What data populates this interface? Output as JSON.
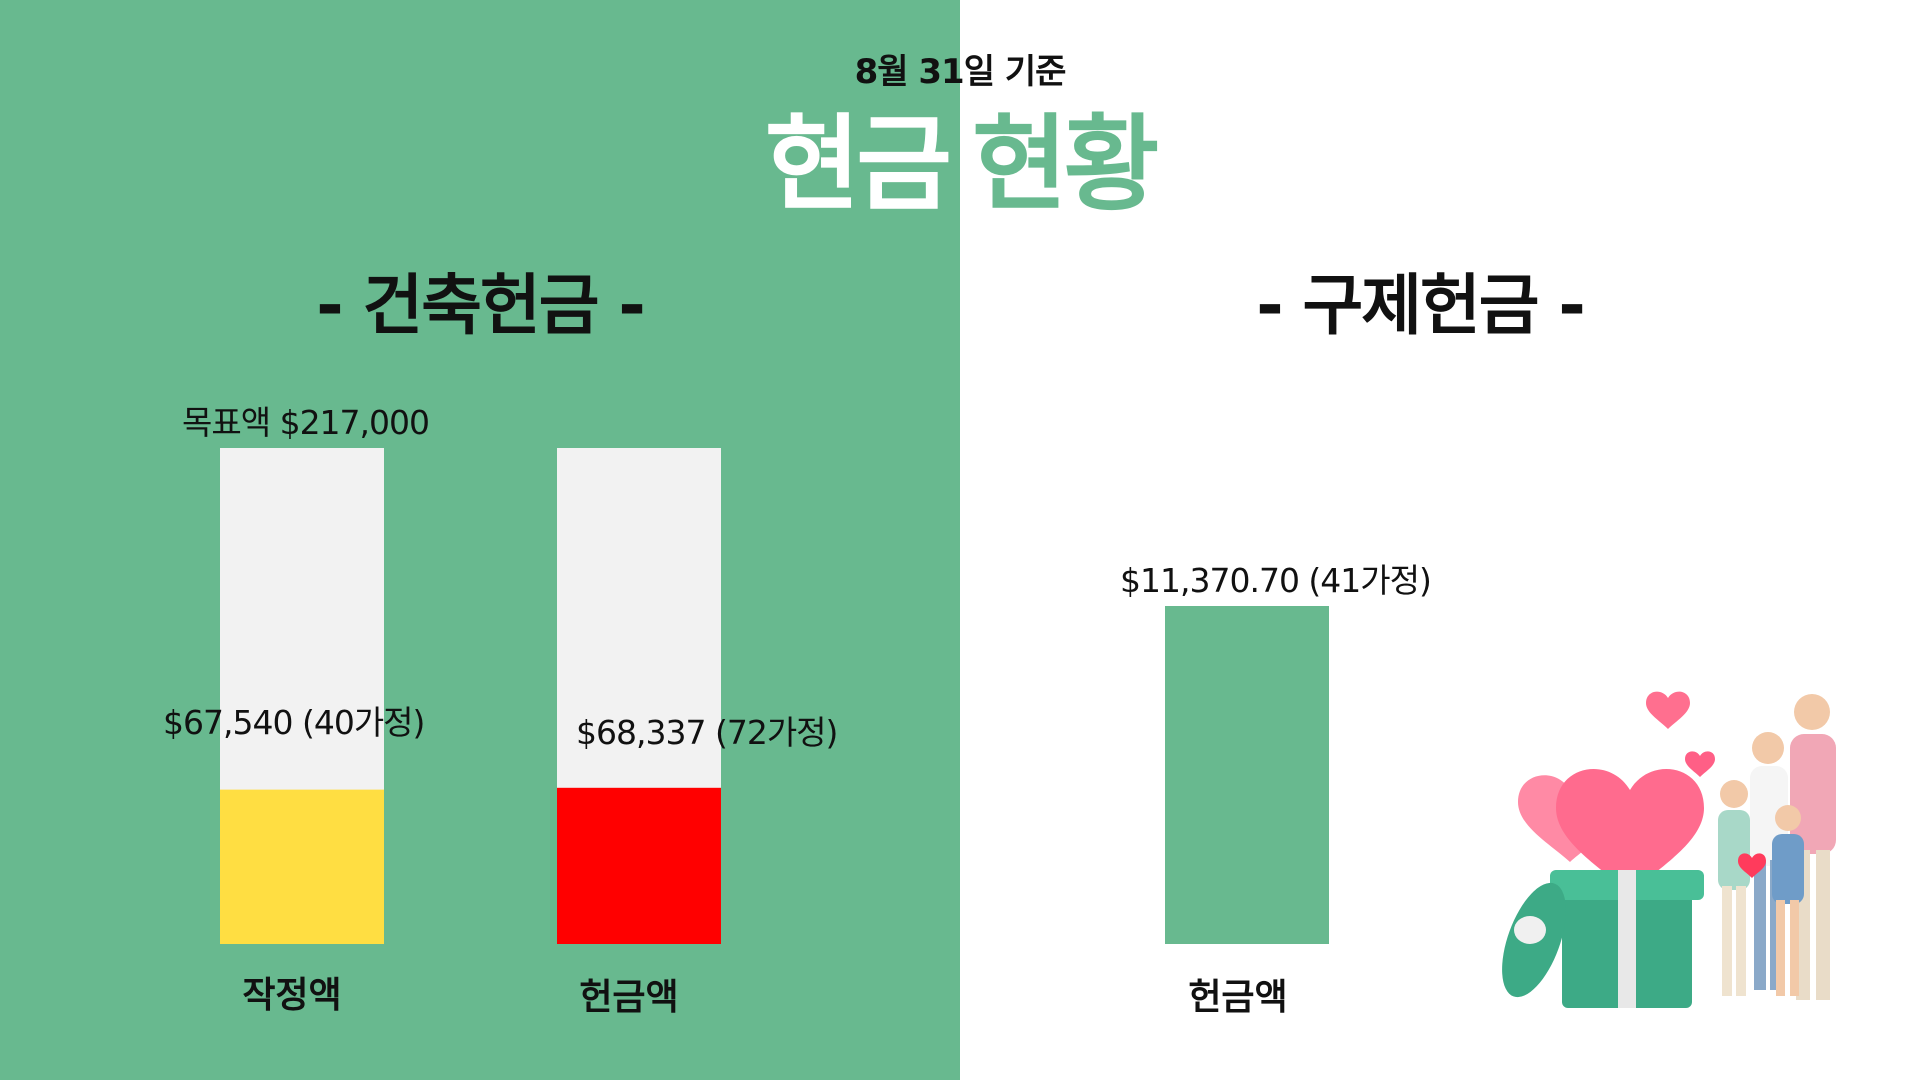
{
  "header": {
    "subtitle": "8월 31일 기준",
    "title_part1": "현금",
    "title_part2": "현황"
  },
  "colors": {
    "green": "#68b98f",
    "white": "#ffffff",
    "track": "#f2f2f2",
    "yellow": "#ffde42",
    "red": "#ff0000"
  },
  "sections": {
    "left_heading": "- 건축헌금 -",
    "right_heading": "- 구제헌금 -"
  },
  "chart_data": [
    {
      "type": "bar",
      "target_label": "목표액 $217,000",
      "target": 217000,
      "categories": [
        "작정액",
        "헌금액"
      ],
      "values": [
        67540,
        68337
      ],
      "value_labels": [
        "$67,540 (40가정)",
        "$68,337 (72가정)"
      ],
      "colors": [
        "#ffde42",
        "#ff0000"
      ]
    },
    {
      "type": "bar",
      "categories": [
        "헌금액"
      ],
      "values": [
        11370.7
      ],
      "value_labels": [
        "$11,370.70 (41가정)"
      ],
      "colors": [
        "#68b98f"
      ]
    }
  ],
  "illustration": {
    "icon": "family-gift-hearts-illustration"
  }
}
